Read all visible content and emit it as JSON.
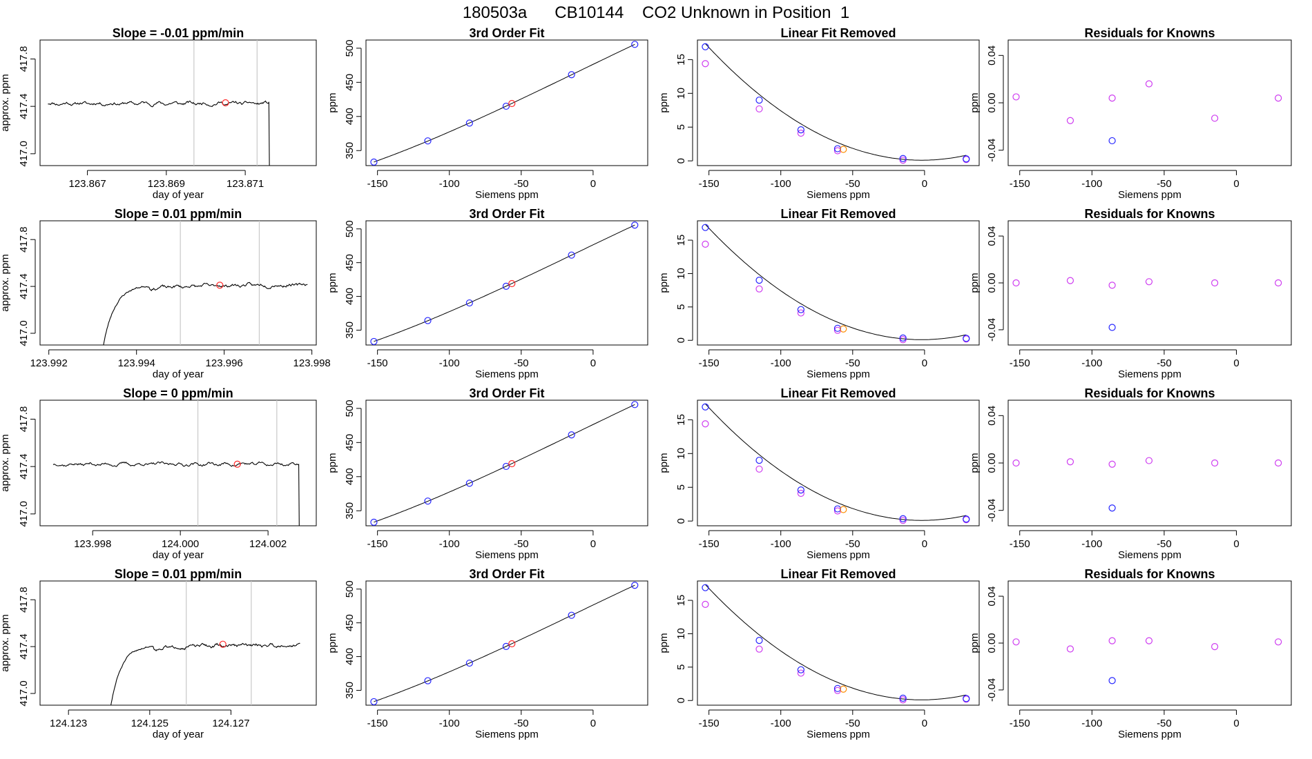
{
  "figure": {
    "title": "180503a      CB10144    CO2 Unknown in Position  1"
  },
  "colors": {
    "blue": "#2424ff",
    "magenta": "#ce3bf0",
    "red": "#ff2a2a",
    "orange": "#ff8c00",
    "black": "#000000",
    "gridline": "#c8c8c8"
  },
  "chart_data": [
    {
      "type": "line",
      "panel": "time-series",
      "row": 0,
      "title": "Slope =  -0.01  ppm/min",
      "xlabel": "day of year",
      "ylabel": "approx. ppm",
      "xlim": [
        123.8658,
        123.8728
      ],
      "ylim": [
        416.9,
        417.96
      ],
      "xticks": [
        123.867,
        123.869,
        123.871
      ],
      "xtick_labels": [
        "123.867",
        "123.869",
        "123.871"
      ],
      "yticks": [
        417.0,
        417.4,
        417.8
      ],
      "ytick_labels": [
        "417.0",
        "417.4",
        "417.8"
      ],
      "trace": {
        "x_start": 123.866,
        "x_end": 123.8716,
        "level": 417.425,
        "rise_from": null,
        "rise_end": null,
        "drop_at": 123.8716,
        "seed": 11
      },
      "vlines": [
        123.8697,
        123.8713
      ],
      "marker": {
        "x": 123.8705,
        "y": 417.43,
        "color": "red"
      }
    },
    {
      "type": "scatter",
      "panel": "3rd-order-fit",
      "row": 0,
      "title": "3rd Order Fit",
      "xlabel": "Siemens ppm",
      "ylabel": "ppm",
      "xlim": [
        -158,
        38
      ],
      "ylim": [
        328,
        512
      ],
      "xticks": [
        -150,
        -100,
        -50,
        0
      ],
      "xtick_labels": [
        "-150",
        "-100",
        "-50",
        "0"
      ],
      "yticks": [
        350,
        400,
        450,
        500
      ],
      "ytick_labels": [
        "350",
        "400",
        "450",
        "500"
      ],
      "points_blue": [
        [
          -152.5,
          333.2
        ],
        [
          -115,
          364.2
        ],
        [
          -86,
          390.3
        ],
        [
          -60.5,
          415.0
        ],
        [
          -15,
          461.2
        ],
        [
          29,
          505.6
        ]
      ],
      "point_red": [
        -56.5,
        419.0
      ],
      "curve": {
        "kind": "cubic_fit"
      }
    },
    {
      "type": "scatter",
      "panel": "linear-fit-removed",
      "row": 0,
      "title": "Linear Fit Removed",
      "xlabel": "Siemens ppm",
      "ylabel": "ppm",
      "xlim": [
        -158,
        38
      ],
      "ylim": [
        -0.7,
        17.9
      ],
      "xticks": [
        -150,
        -100,
        -50,
        0
      ],
      "xtick_labels": [
        "-150",
        "-100",
        "-50",
        "0"
      ],
      "yticks": [
        0,
        5,
        10,
        15
      ],
      "ytick_labels": [
        "0",
        "5",
        "10",
        "15"
      ],
      "points_blue": [
        [
          -152.5,
          16.9
        ],
        [
          -115,
          9.0
        ],
        [
          -86,
          4.6
        ],
        [
          -60.5,
          1.8
        ],
        [
          -15,
          0.35
        ],
        [
          29,
          0.3
        ]
      ],
      "points_magenta": [
        [
          -152.5,
          14.4
        ],
        [
          -115,
          7.7
        ],
        [
          -86,
          4.1
        ],
        [
          -60.5,
          1.5
        ],
        [
          -15,
          0.1
        ],
        [
          29,
          0.2
        ]
      ],
      "point_orange": [
        -56.5,
        1.7
      ],
      "curve": {
        "kind": "quadratic",
        "a": 0.000762,
        "vertex_x": -2,
        "k": 0.1
      }
    },
    {
      "type": "scatter",
      "panel": "residuals",
      "row": 0,
      "title": "Residuals for Knowns",
      "xlabel": "Siemens ppm",
      "ylabel": "ppm",
      "xlim": [
        -158,
        38
      ],
      "ylim": [
        -0.053,
        0.053
      ],
      "xticks": [
        -150,
        -100,
        -50,
        0
      ],
      "xtick_labels": [
        "-150",
        "-100",
        "-50",
        "0"
      ],
      "yticks": [
        -0.04,
        0.0,
        0.04
      ],
      "ytick_labels": [
        "-0.04",
        "0.00",
        "0.04"
      ],
      "points_magenta": [
        [
          -152.5,
          0.005
        ],
        [
          -115,
          -0.015
        ],
        [
          -86,
          0.004
        ],
        [
          -60.5,
          0.016
        ],
        [
          -15,
          -0.013
        ],
        [
          29,
          0.004
        ]
      ],
      "point_blue": [
        -86,
        -0.032
      ]
    },
    {
      "type": "line",
      "panel": "time-series",
      "row": 1,
      "title": "Slope =  0.01  ppm/min",
      "xlabel": "day of year",
      "ylabel": "approx. ppm",
      "xlim": [
        123.9918,
        123.9981
      ],
      "ylim": [
        416.9,
        417.96
      ],
      "xticks": [
        123.992,
        123.994,
        123.996,
        123.998
      ],
      "xtick_labels": [
        "123.992",
        "123.994",
        "123.996",
        "123.998"
      ],
      "yticks": [
        417.0,
        417.4,
        417.8
      ],
      "ytick_labels": [
        "417.0",
        "417.4",
        "417.8"
      ],
      "trace": {
        "x_start": 123.9932,
        "x_end": 123.9979,
        "level": 417.415,
        "rise_from": 416.8,
        "rise_end": 123.9943,
        "drop_at": null,
        "seed": 23
      },
      "vlines": [
        123.995,
        123.9968
      ],
      "marker": {
        "x": 123.9959,
        "y": 417.41,
        "color": "red"
      }
    },
    {
      "type": "scatter",
      "panel": "3rd-order-fit",
      "row": 1,
      "title": "3rd Order Fit",
      "xlabel": "Siemens ppm",
      "ylabel": "ppm",
      "xlim": [
        -158,
        38
      ],
      "ylim": [
        328,
        512
      ],
      "xticks": [
        -150,
        -100,
        -50,
        0
      ],
      "xtick_labels": [
        "-150",
        "-100",
        "-50",
        "0"
      ],
      "yticks": [
        350,
        400,
        450,
        500
      ],
      "ytick_labels": [
        "350",
        "400",
        "450",
        "500"
      ],
      "points_blue": [
        [
          -152.5,
          333.2
        ],
        [
          -115,
          364.2
        ],
        [
          -86,
          390.3
        ],
        [
          -60.5,
          415.0
        ],
        [
          -15,
          461.2
        ],
        [
          29,
          505.6
        ]
      ],
      "point_red": [
        -56.5,
        419.0
      ],
      "curve": {
        "kind": "cubic_fit"
      }
    },
    {
      "type": "scatter",
      "panel": "linear-fit-removed",
      "row": 1,
      "title": "Linear Fit Removed",
      "xlabel": "Siemens ppm",
      "ylabel": "ppm",
      "xlim": [
        -158,
        38
      ],
      "ylim": [
        -0.7,
        17.9
      ],
      "xticks": [
        -150,
        -100,
        -50,
        0
      ],
      "xtick_labels": [
        "-150",
        "-100",
        "-50",
        "0"
      ],
      "yticks": [
        0,
        5,
        10,
        15
      ],
      "ytick_labels": [
        "0",
        "5",
        "10",
        "15"
      ],
      "points_blue": [
        [
          -152.5,
          16.9
        ],
        [
          -115,
          9.0
        ],
        [
          -86,
          4.6
        ],
        [
          -60.5,
          1.8
        ],
        [
          -15,
          0.35
        ],
        [
          29,
          0.3
        ]
      ],
      "points_magenta": [
        [
          -152.5,
          14.4
        ],
        [
          -115,
          7.7
        ],
        [
          -86,
          4.1
        ],
        [
          -60.5,
          1.5
        ],
        [
          -15,
          0.1
        ],
        [
          29,
          0.2
        ]
      ],
      "point_orange": [
        -56.5,
        1.7
      ],
      "curve": {
        "kind": "quadratic",
        "a": 0.000762,
        "vertex_x": -2,
        "k": 0.1
      }
    },
    {
      "type": "scatter",
      "panel": "residuals",
      "row": 1,
      "title": "Residuals for Knowns",
      "xlabel": "Siemens ppm",
      "ylabel": "ppm",
      "xlim": [
        -158,
        38
      ],
      "ylim": [
        -0.053,
        0.053
      ],
      "xticks": [
        -150,
        -100,
        -50,
        0
      ],
      "xtick_labels": [
        "-150",
        "-100",
        "-50",
        "0"
      ],
      "yticks": [
        -0.04,
        0.0,
        0.04
      ],
      "ytick_labels": [
        "-0.04",
        "0.00",
        "0.04"
      ],
      "points_magenta": [
        [
          -152.5,
          0.0
        ],
        [
          -115,
          0.002
        ],
        [
          -86,
          -0.002
        ],
        [
          -60.5,
          0.001
        ],
        [
          -15,
          0.0
        ],
        [
          29,
          0.0
        ]
      ],
      "point_blue": [
        -86,
        -0.038
      ]
    },
    {
      "type": "line",
      "panel": "time-series",
      "row": 2,
      "title": "Slope =  0  ppm/min",
      "xlabel": "day of year",
      "ylabel": "approx. ppm",
      "xlim": [
        123.9968,
        124.0031
      ],
      "ylim": [
        416.9,
        417.96
      ],
      "xticks": [
        123.998,
        124.0,
        124.002
      ],
      "xtick_labels": [
        "123.998",
        "124.000",
        "124.002"
      ],
      "yticks": [
        417.0,
        417.4,
        417.8
      ],
      "ytick_labels": [
        "417.0",
        "417.4",
        "417.8"
      ],
      "trace": {
        "x_start": 123.9971,
        "x_end": 124.0027,
        "level": 417.42,
        "rise_from": null,
        "rise_end": null,
        "drop_at": 124.0027,
        "seed": 37
      },
      "vlines": [
        124.0004,
        124.0022
      ],
      "marker": {
        "x": 124.0013,
        "y": 417.42,
        "color": "red"
      }
    },
    {
      "type": "scatter",
      "panel": "3rd-order-fit",
      "row": 2,
      "title": "3rd Order Fit",
      "xlabel": "Siemens ppm",
      "ylabel": "ppm",
      "xlim": [
        -158,
        38
      ],
      "ylim": [
        328,
        512
      ],
      "xticks": [
        -150,
        -100,
        -50,
        0
      ],
      "xtick_labels": [
        "-150",
        "-100",
        "-50",
        "0"
      ],
      "yticks": [
        350,
        400,
        450,
        500
      ],
      "ytick_labels": [
        "350",
        "400",
        "450",
        "500"
      ],
      "points_blue": [
        [
          -152.5,
          333.2
        ],
        [
          -115,
          364.2
        ],
        [
          -86,
          390.3
        ],
        [
          -60.5,
          415.0
        ],
        [
          -15,
          461.2
        ],
        [
          29,
          505.6
        ]
      ],
      "point_red": [
        -56.5,
        419.0
      ],
      "curve": {
        "kind": "cubic_fit"
      }
    },
    {
      "type": "scatter",
      "panel": "linear-fit-removed",
      "row": 2,
      "title": "Linear Fit Removed",
      "xlabel": "Siemens ppm",
      "ylabel": "ppm",
      "xlim": [
        -158,
        38
      ],
      "ylim": [
        -0.7,
        17.9
      ],
      "xticks": [
        -150,
        -100,
        -50,
        0
      ],
      "xtick_labels": [
        "-150",
        "-100",
        "-50",
        "0"
      ],
      "yticks": [
        0,
        5,
        10,
        15
      ],
      "ytick_labels": [
        "0",
        "5",
        "10",
        "15"
      ],
      "points_blue": [
        [
          -152.5,
          16.9
        ],
        [
          -115,
          9.0
        ],
        [
          -86,
          4.6
        ],
        [
          -60.5,
          1.8
        ],
        [
          -15,
          0.35
        ],
        [
          29,
          0.3
        ]
      ],
      "points_magenta": [
        [
          -152.5,
          14.4
        ],
        [
          -115,
          7.7
        ],
        [
          -86,
          4.1
        ],
        [
          -60.5,
          1.5
        ],
        [
          -15,
          0.1
        ],
        [
          29,
          0.2
        ]
      ],
      "point_orange": [
        -56.5,
        1.7
      ],
      "curve": {
        "kind": "quadratic",
        "a": 0.000762,
        "vertex_x": -2,
        "k": 0.1
      }
    },
    {
      "type": "scatter",
      "panel": "residuals",
      "row": 2,
      "title": "Residuals for Knowns",
      "xlabel": "Siemens ppm",
      "ylabel": "ppm",
      "xlim": [
        -158,
        38
      ],
      "ylim": [
        -0.053,
        0.053
      ],
      "xticks": [
        -150,
        -100,
        -50,
        0
      ],
      "xtick_labels": [
        "-150",
        "-100",
        "-50",
        "0"
      ],
      "yticks": [
        -0.04,
        0.0,
        0.04
      ],
      "ytick_labels": [
        "-0.04",
        "0.00",
        "0.04"
      ],
      "points_magenta": [
        [
          -152.5,
          0.0
        ],
        [
          -115,
          0.001
        ],
        [
          -86,
          -0.001
        ],
        [
          -60.5,
          0.002
        ],
        [
          -15,
          0.0
        ],
        [
          29,
          0.0
        ]
      ],
      "point_blue": [
        -86,
        -0.038
      ]
    },
    {
      "type": "line",
      "panel": "time-series",
      "row": 3,
      "title": "Slope =  0.01  ppm/min",
      "xlabel": "day of year",
      "ylabel": "approx. ppm",
      "xlim": [
        124.1223,
        124.1291
      ],
      "ylim": [
        416.9,
        417.96
      ],
      "xticks": [
        124.123,
        124.125,
        124.127
      ],
      "xtick_labels": [
        "124.123",
        "124.125",
        "124.127"
      ],
      "yticks": [
        417.0,
        417.4,
        417.8
      ],
      "ytick_labels": [
        "417.0",
        "417.4",
        "417.8"
      ],
      "trace": {
        "x_start": 124.124,
        "x_end": 124.1287,
        "level": 417.415,
        "rise_from": 416.8,
        "rise_end": 124.1251,
        "drop_at": null,
        "seed": 51
      },
      "vlines": [
        124.1259,
        124.1275
      ],
      "marker": {
        "x": 124.1268,
        "y": 417.42,
        "color": "red"
      }
    },
    {
      "type": "scatter",
      "panel": "3rd-order-fit",
      "row": 3,
      "title": "3rd Order Fit",
      "xlabel": "Siemens ppm",
      "ylabel": "ppm",
      "xlim": [
        -158,
        38
      ],
      "ylim": [
        328,
        512
      ],
      "xticks": [
        -150,
        -100,
        -50,
        0
      ],
      "xtick_labels": [
        "-150",
        "-100",
        "-50",
        "0"
      ],
      "yticks": [
        350,
        400,
        450,
        500
      ],
      "ytick_labels": [
        "350",
        "400",
        "450",
        "500"
      ],
      "points_blue": [
        [
          -152.5,
          333.2
        ],
        [
          -115,
          364.2
        ],
        [
          -86,
          390.3
        ],
        [
          -60.5,
          415.0
        ],
        [
          -15,
          461.2
        ],
        [
          29,
          505.6
        ]
      ],
      "point_red": [
        -56.5,
        419.0
      ],
      "curve": {
        "kind": "cubic_fit"
      }
    },
    {
      "type": "scatter",
      "panel": "linear-fit-removed",
      "row": 3,
      "title": "Linear Fit Removed",
      "xlabel": "Siemens ppm",
      "ylabel": "ppm",
      "xlim": [
        -158,
        38
      ],
      "ylim": [
        -0.7,
        17.9
      ],
      "xticks": [
        -150,
        -100,
        -50,
        0
      ],
      "xtick_labels": [
        "-150",
        "-100",
        "-50",
        "0"
      ],
      "yticks": [
        0,
        5,
        10,
        15
      ],
      "ytick_labels": [
        "0",
        "5",
        "10",
        "15"
      ],
      "points_blue": [
        [
          -152.5,
          16.9
        ],
        [
          -115,
          9.0
        ],
        [
          -86,
          4.6
        ],
        [
          -60.5,
          1.8
        ],
        [
          -15,
          0.35
        ],
        [
          29,
          0.3
        ]
      ],
      "points_magenta": [
        [
          -152.5,
          14.4
        ],
        [
          -115,
          7.7
        ],
        [
          -86,
          4.1
        ],
        [
          -60.5,
          1.5
        ],
        [
          -15,
          0.1
        ],
        [
          29,
          0.2
        ]
      ],
      "point_orange": [
        -56.5,
        1.7
      ],
      "curve": {
        "kind": "quadratic",
        "a": 0.000762,
        "vertex_x": -2,
        "k": 0.1
      }
    },
    {
      "type": "scatter",
      "panel": "residuals",
      "row": 3,
      "title": "Residuals for Knowns",
      "xlabel": "Siemens ppm",
      "ylabel": "ppm",
      "xlim": [
        -158,
        38
      ],
      "ylim": [
        -0.053,
        0.053
      ],
      "xticks": [
        -150,
        -100,
        -50,
        0
      ],
      "xtick_labels": [
        "-150",
        "-100",
        "-50",
        "0"
      ],
      "yticks": [
        -0.04,
        0.0,
        0.04
      ],
      "ytick_labels": [
        "-0.04",
        "0.00",
        "0.04"
      ],
      "points_magenta": [
        [
          -152.5,
          0.001
        ],
        [
          -115,
          -0.005
        ],
        [
          -86,
          0.002
        ],
        [
          -60.5,
          0.002
        ],
        [
          -15,
          -0.003
        ],
        [
          29,
          0.001
        ]
      ],
      "point_blue": [
        -86,
        -0.032
      ]
    }
  ]
}
